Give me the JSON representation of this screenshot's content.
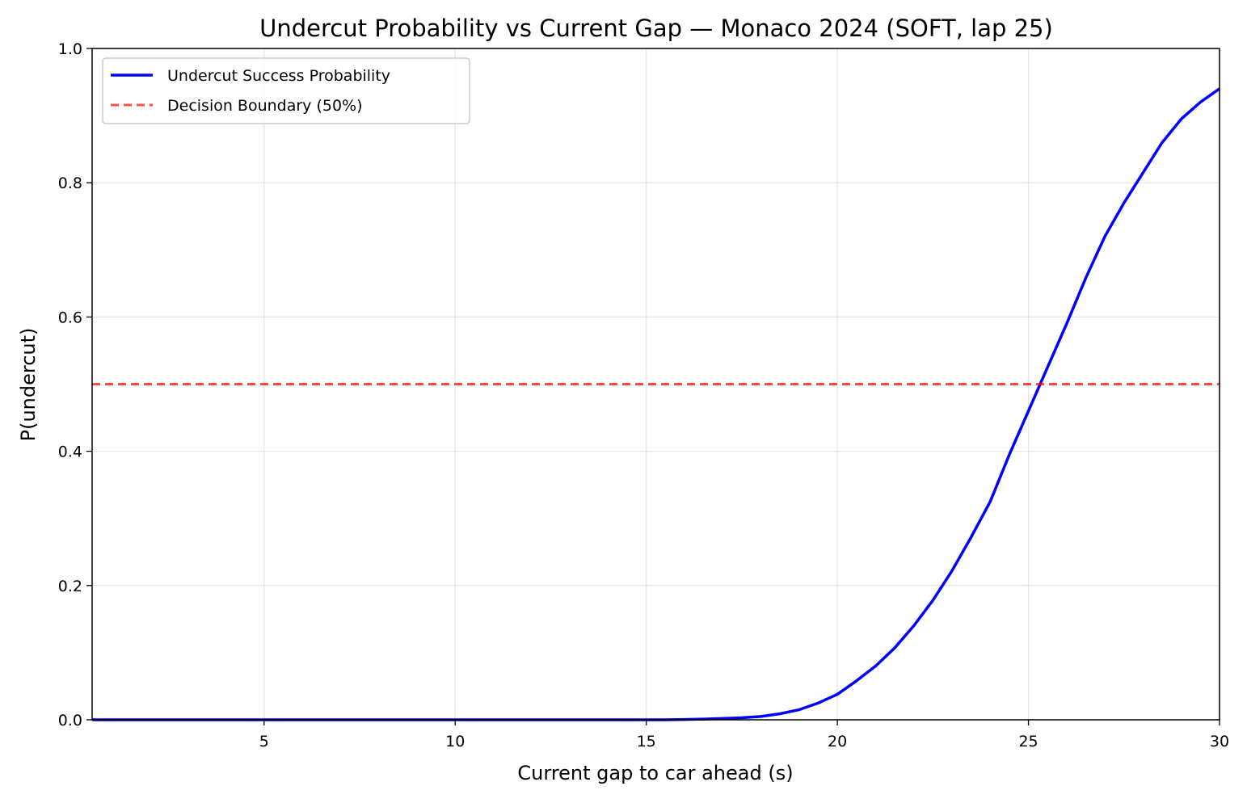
{
  "chart_data": {
    "type": "line",
    "title": "Undercut Probability vs Current Gap — Monaco 2024 (SOFT, lap 25)",
    "xlabel": "Current gap to car ahead (s)",
    "ylabel": "P(undercut)",
    "xlim": [
      0.5,
      30
    ],
    "ylim": [
      0.0,
      1.0
    ],
    "x_ticks": [
      5,
      10,
      15,
      20,
      25,
      30
    ],
    "x_tick_labels": [
      "5",
      "10",
      "15",
      "20",
      "25",
      "30"
    ],
    "y_ticks": [
      0.0,
      0.2,
      0.4,
      0.6,
      0.8,
      1.0
    ],
    "y_tick_labels": [
      "0.0",
      "0.2",
      "0.4",
      "0.6",
      "0.8",
      "1.0"
    ],
    "grid": true,
    "legend_position": "top-left",
    "series": [
      {
        "name": "Undercut Success Probability",
        "color": "#0000ff",
        "style": "solid",
        "x": [
          0.5,
          1.0,
          1.5,
          2.0,
          2.5,
          3.0,
          3.5,
          4.0,
          4.5,
          5.0,
          5.5,
          6.0,
          6.5,
          7.0,
          7.5,
          8.0,
          8.5,
          9.0,
          9.5,
          10.0,
          10.5,
          11.0,
          11.5,
          12.0,
          12.5,
          13.0,
          13.5,
          14.0,
          14.5,
          15.0,
          15.5,
          16.0,
          16.5,
          17.0,
          17.5,
          18.0,
          18.5,
          19.0,
          19.5,
          20.0,
          20.5,
          21.0,
          21.5,
          22.0,
          22.5,
          23.0,
          23.5,
          24.0,
          24.5,
          25.0,
          25.5,
          26.0,
          26.5,
          27.0,
          27.5,
          28.0,
          28.5,
          29.0,
          29.5,
          30.0
        ],
        "values": [
          0.0,
          0.0,
          0.0,
          0.0,
          0.0,
          0.0,
          0.0,
          0.0,
          0.0,
          0.0,
          0.0,
          0.0,
          0.0,
          0.0,
          0.0,
          0.0,
          0.0,
          0.0,
          0.0,
          0.0,
          0.0,
          0.0,
          0.0,
          0.0,
          0.0,
          0.0,
          0.0,
          0.0,
          0.0,
          0.0,
          0.0,
          0.0005,
          0.001,
          0.002,
          0.003,
          0.005,
          0.009,
          0.015,
          0.025,
          0.038,
          0.058,
          0.08,
          0.107,
          0.14,
          0.178,
          0.222,
          0.272,
          0.325,
          0.395,
          0.46,
          0.525,
          0.59,
          0.658,
          0.72,
          0.77,
          0.815,
          0.86,
          0.895,
          0.92,
          0.94
        ]
      },
      {
        "name": "Decision Boundary (50%)",
        "color": "#ff0000",
        "style": "dashed",
        "x": [
          0.5,
          30
        ],
        "values": [
          0.5,
          0.5
        ]
      }
    ]
  }
}
